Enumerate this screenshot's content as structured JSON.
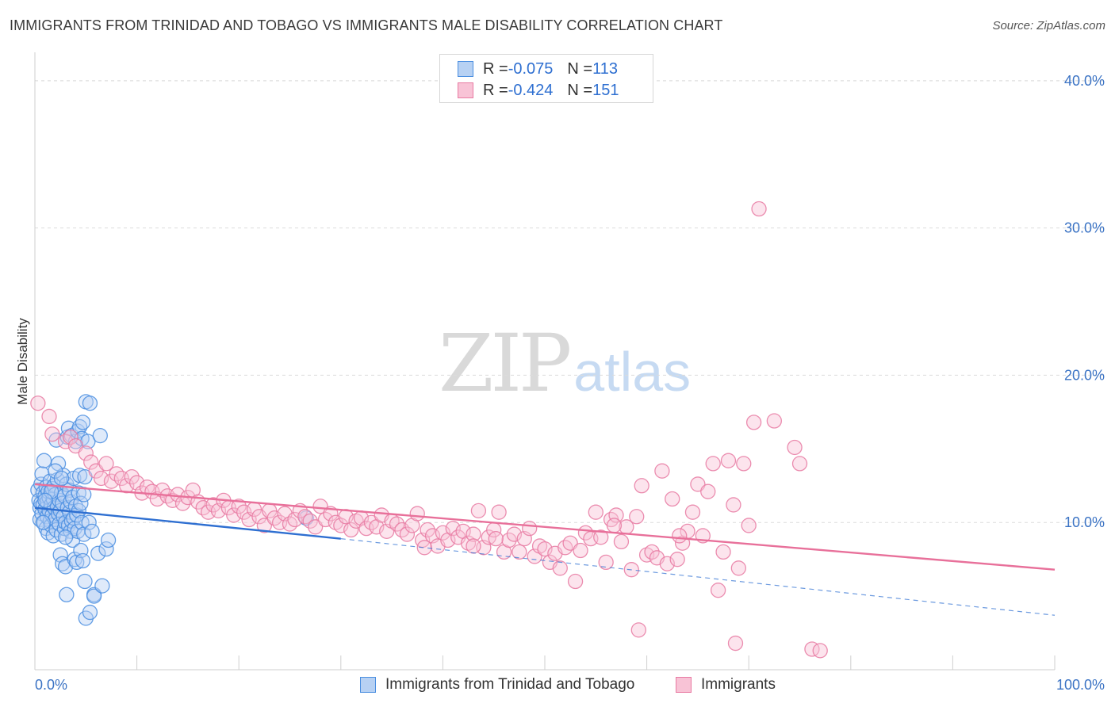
{
  "title": "IMMIGRANTS FROM TRINIDAD AND TOBAGO VS IMMIGRANTS MALE DISABILITY CORRELATION CHART",
  "source": "Source: ZipAtlas.com",
  "watermark": {
    "zip": "ZIP",
    "atlas": "atlas"
  },
  "colors": {
    "blue": "#4a8ee0",
    "blue_fill": "#b7d1f3",
    "pink": "#e87aa2",
    "pink_fill": "#f8c3d6",
    "blue_line": "#2e6fd1",
    "pink_line": "#e8709a",
    "tick": "#3b73c4"
  },
  "legend": [
    {
      "r_label": "R = ",
      "r_value": "-0.075",
      "n_label": "N = ",
      "n_value": "113"
    },
    {
      "r_label": "R = ",
      "r_value": "-0.424",
      "n_label": "N = ",
      "n_value": "151"
    }
  ],
  "chart_data": {
    "type": "scatter",
    "title": "IMMIGRANTS FROM TRINIDAD AND TOBAGO VS IMMIGRANTS MALE DISABILITY CORRELATION CHART",
    "xlabel": "",
    "ylabel": "Male Disability",
    "xlim": [
      0,
      100
    ],
    "ylim": [
      0,
      41.5
    ],
    "x_ticks": [
      {
        "value": 0,
        "label": "0.0%"
      },
      {
        "value": 100,
        "label": "100.0%"
      }
    ],
    "y_ticks": [
      {
        "value": 10,
        "label": "10.0%"
      },
      {
        "value": 20,
        "label": "20.0%"
      },
      {
        "value": 30,
        "label": "30.0%"
      },
      {
        "value": 40,
        "label": "40.0%"
      }
    ],
    "grid": "horizontal dashed",
    "series": [
      {
        "name": "Immigrants from Trinidad and Tobago",
        "color": "#4a8ee0",
        "trend": {
          "x0": 0,
          "y0": 11.0,
          "x1": 30,
          "y1": 8.9,
          "dashed_to_x": 100,
          "dashed_to_y": 3.7
        },
        "points": [
          [
            0.3,
            12.2
          ],
          [
            0.4,
            11.5
          ],
          [
            0.5,
            11.0
          ],
          [
            0.5,
            10.2
          ],
          [
            0.6,
            12.6
          ],
          [
            0.6,
            11.3
          ],
          [
            0.7,
            10.6
          ],
          [
            0.7,
            13.3
          ],
          [
            0.8,
            12.0
          ],
          [
            0.8,
            11.2
          ],
          [
            0.9,
            10.0
          ],
          [
            0.9,
            14.2
          ],
          [
            1.0,
            11.8
          ],
          [
            1.0,
            10.9
          ],
          [
            1.1,
            12.4
          ],
          [
            1.1,
            9.6
          ],
          [
            1.2,
            11.4
          ],
          [
            1.2,
            10.4
          ],
          [
            1.3,
            12.1
          ],
          [
            1.3,
            9.3
          ],
          [
            1.4,
            11.7
          ],
          [
            1.4,
            10.8
          ],
          [
            1.5,
            12.8
          ],
          [
            1.5,
            10.1
          ],
          [
            1.6,
            11.2
          ],
          [
            1.6,
            9.8
          ],
          [
            1.7,
            12.3
          ],
          [
            1.7,
            10.5
          ],
          [
            1.8,
            11.6
          ],
          [
            1.8,
            9.1
          ],
          [
            1.9,
            11.0
          ],
          [
            1.9,
            12.5
          ],
          [
            2.0,
            10.2
          ],
          [
            2.0,
            11.9
          ],
          [
            2.1,
            9.5
          ],
          [
            2.1,
            15.6
          ],
          [
            2.2,
            12.9
          ],
          [
            2.2,
            11.1
          ],
          [
            2.3,
            10.6
          ],
          [
            2.3,
            14.0
          ],
          [
            2.4,
            9.9
          ],
          [
            2.4,
            11.5
          ],
          [
            2.5,
            7.8
          ],
          [
            2.5,
            10.8
          ],
          [
            2.6,
            12.0
          ],
          [
            2.6,
            9.2
          ],
          [
            2.7,
            11.3
          ],
          [
            2.7,
            7.2
          ],
          [
            2.8,
            10.4
          ],
          [
            2.8,
            13.2
          ],
          [
            2.9,
            11.8
          ],
          [
            2.9,
            9.6
          ],
          [
            3.0,
            10.0
          ],
          [
            3.0,
            7.0
          ],
          [
            3.1,
            12.6
          ],
          [
            3.1,
            5.1
          ],
          [
            3.2,
            11.0
          ],
          [
            3.2,
            15.8
          ],
          [
            3.3,
            9.8
          ],
          [
            3.3,
            16.4
          ],
          [
            3.4,
            10.7
          ],
          [
            3.4,
            12.2
          ],
          [
            3.5,
            9.4
          ],
          [
            3.5,
            11.4
          ],
          [
            3.6,
            10.1
          ],
          [
            3.6,
            15.9
          ],
          [
            3.7,
            8.8
          ],
          [
            3.7,
            11.7
          ],
          [
            3.8,
            13.0
          ],
          [
            3.8,
            10.3
          ],
          [
            3.9,
            9.6
          ],
          [
            3.9,
            7.5
          ],
          [
            4.0,
            11.1
          ],
          [
            4.0,
            15.5
          ],
          [
            4.1,
            10.5
          ],
          [
            4.1,
            7.3
          ],
          [
            4.2,
            16.2
          ],
          [
            4.2,
            9.4
          ],
          [
            4.3,
            12.0
          ],
          [
            4.3,
            10.8
          ],
          [
            4.4,
            16.5
          ],
          [
            4.4,
            13.2
          ],
          [
            4.5,
            11.3
          ],
          [
            4.5,
            8.1
          ],
          [
            4.6,
            15.7
          ],
          [
            4.6,
            10.0
          ],
          [
            4.7,
            16.8
          ],
          [
            4.7,
            7.4
          ],
          [
            4.8,
            11.9
          ],
          [
            4.8,
            9.2
          ],
          [
            4.9,
            13.1
          ],
          [
            4.9,
            6.0
          ],
          [
            5.0,
            18.2
          ],
          [
            5.0,
            3.5
          ],
          [
            5.2,
            15.5
          ],
          [
            5.3,
            10.0
          ],
          [
            5.4,
            18.1
          ],
          [
            5.4,
            3.9
          ],
          [
            5.6,
            9.4
          ],
          [
            5.8,
            5.1
          ],
          [
            5.8,
            5.0
          ],
          [
            6.2,
            7.9
          ],
          [
            6.4,
            15.9
          ],
          [
            6.6,
            5.7
          ],
          [
            7.0,
            8.2
          ],
          [
            7.2,
            8.8
          ],
          [
            1.6,
            12.1
          ],
          [
            2.0,
            13.5
          ],
          [
            1.0,
            11.5
          ],
          [
            0.8,
            10.0
          ],
          [
            2.6,
            13.0
          ],
          [
            3.0,
            9.0
          ],
          [
            26.6,
            10.3
          ]
        ]
      },
      {
        "name": "Immigrants",
        "color": "#e87aa2",
        "trend": {
          "x0": 0,
          "y0": 12.6,
          "x1": 100,
          "y1": 6.8
        },
        "points": [
          [
            0.3,
            18.1
          ],
          [
            1.4,
            17.2
          ],
          [
            1.7,
            16.0
          ],
          [
            3.0,
            15.5
          ],
          [
            3.5,
            15.8
          ],
          [
            4.0,
            15.2
          ],
          [
            5.0,
            14.7
          ],
          [
            5.5,
            14.1
          ],
          [
            6.0,
            13.5
          ],
          [
            6.5,
            13.0
          ],
          [
            7.0,
            14.0
          ],
          [
            7.5,
            12.8
          ],
          [
            8.0,
            13.3
          ],
          [
            8.5,
            13.0
          ],
          [
            9.0,
            12.5
          ],
          [
            9.5,
            13.1
          ],
          [
            10.0,
            12.7
          ],
          [
            10.5,
            12.0
          ],
          [
            11.0,
            12.4
          ],
          [
            11.5,
            12.1
          ],
          [
            12.0,
            11.6
          ],
          [
            12.5,
            12.2
          ],
          [
            13.0,
            11.8
          ],
          [
            13.5,
            11.5
          ],
          [
            14.0,
            11.9
          ],
          [
            14.5,
            11.3
          ],
          [
            15.0,
            11.7
          ],
          [
            15.5,
            12.2
          ],
          [
            16.0,
            11.4
          ],
          [
            16.5,
            11.0
          ],
          [
            17.0,
            10.7
          ],
          [
            17.5,
            11.2
          ],
          [
            18.0,
            10.8
          ],
          [
            18.5,
            11.5
          ],
          [
            19.0,
            11.0
          ],
          [
            19.5,
            10.5
          ],
          [
            20.0,
            11.1
          ],
          [
            20.5,
            10.7
          ],
          [
            21.0,
            10.2
          ],
          [
            21.5,
            10.9
          ],
          [
            22.0,
            10.4
          ],
          [
            22.5,
            9.8
          ],
          [
            23.0,
            10.8
          ],
          [
            23.5,
            10.3
          ],
          [
            24.0,
            10.0
          ],
          [
            24.5,
            10.6
          ],
          [
            25.0,
            9.9
          ],
          [
            25.5,
            10.2
          ],
          [
            26.0,
            10.8
          ],
          [
            26.5,
            10.4
          ],
          [
            27.0,
            10.1
          ],
          [
            27.5,
            9.7
          ],
          [
            28.0,
            11.1
          ],
          [
            28.5,
            10.2
          ],
          [
            29.0,
            10.6
          ],
          [
            29.5,
            10.0
          ],
          [
            30.0,
            9.8
          ],
          [
            30.5,
            10.4
          ],
          [
            31.0,
            9.5
          ],
          [
            31.5,
            10.1
          ],
          [
            32.0,
            10.3
          ],
          [
            32.5,
            9.6
          ],
          [
            33.0,
            10.0
          ],
          [
            33.5,
            9.7
          ],
          [
            34.0,
            10.5
          ],
          [
            34.5,
            9.4
          ],
          [
            35.0,
            10.1
          ],
          [
            35.5,
            9.9
          ],
          [
            36.0,
            9.5
          ],
          [
            36.5,
            9.2
          ],
          [
            37.0,
            9.8
          ],
          [
            37.5,
            10.6
          ],
          [
            38.0,
            8.8
          ],
          [
            38.5,
            9.5
          ],
          [
            39.0,
            9.1
          ],
          [
            39.5,
            8.4
          ],
          [
            40.0,
            9.3
          ],
          [
            40.5,
            8.8
          ],
          [
            41.0,
            9.6
          ],
          [
            41.5,
            9.0
          ],
          [
            42.0,
            9.4
          ],
          [
            42.5,
            8.6
          ],
          [
            43.0,
            9.2
          ],
          [
            43.5,
            10.8
          ],
          [
            44.0,
            8.3
          ],
          [
            44.5,
            9.0
          ],
          [
            45.0,
            9.5
          ],
          [
            45.5,
            10.7
          ],
          [
            46.0,
            8.0
          ],
          [
            46.5,
            8.8
          ],
          [
            47.0,
            9.2
          ],
          [
            47.5,
            8.0
          ],
          [
            48.0,
            8.9
          ],
          [
            48.5,
            9.6
          ],
          [
            49.0,
            7.7
          ],
          [
            49.5,
            8.4
          ],
          [
            50.0,
            8.2
          ],
          [
            50.5,
            7.3
          ],
          [
            51.0,
            7.9
          ],
          [
            51.5,
            6.9
          ],
          [
            52.0,
            8.3
          ],
          [
            52.5,
            8.6
          ],
          [
            53.0,
            6.0
          ],
          [
            53.5,
            8.1
          ],
          [
            54.0,
            9.3
          ],
          [
            54.5,
            8.9
          ],
          [
            55.0,
            10.7
          ],
          [
            55.5,
            9.0
          ],
          [
            56.0,
            7.3
          ],
          [
            56.5,
            10.2
          ],
          [
            57.0,
            10.5
          ],
          [
            57.5,
            8.7
          ],
          [
            58.0,
            9.7
          ],
          [
            58.5,
            6.8
          ],
          [
            59.0,
            10.4
          ],
          [
            59.5,
            12.5
          ],
          [
            60.0,
            7.8
          ],
          [
            60.5,
            8.0
          ],
          [
            61.0,
            7.6
          ],
          [
            61.5,
            13.5
          ],
          [
            62.0,
            7.2
          ],
          [
            62.5,
            11.6
          ],
          [
            63.0,
            7.5
          ],
          [
            63.5,
            8.6
          ],
          [
            64.0,
            9.4
          ],
          [
            64.5,
            10.7
          ],
          [
            65.0,
            12.6
          ],
          [
            65.5,
            9.1
          ],
          [
            66.0,
            12.1
          ],
          [
            66.5,
            14.0
          ],
          [
            67.0,
            5.4
          ],
          [
            67.5,
            8.0
          ],
          [
            68.0,
            14.2
          ],
          [
            68.5,
            11.2
          ],
          [
            69.0,
            6.9
          ],
          [
            69.5,
            14.0
          ],
          [
            70.0,
            9.8
          ],
          [
            70.5,
            16.8
          ],
          [
            71.0,
            31.3
          ],
          [
            72.5,
            16.9
          ],
          [
            74.5,
            15.1
          ],
          [
            75.0,
            14.0
          ],
          [
            76.2,
            1.4
          ],
          [
            77.0,
            1.3
          ],
          [
            59.2,
            2.7
          ],
          [
            68.7,
            1.8
          ],
          [
            56.8,
            9.8
          ],
          [
            63.2,
            9.1
          ],
          [
            43.0,
            8.4
          ],
          [
            45.2,
            8.9
          ],
          [
            38.2,
            8.3
          ]
        ]
      }
    ]
  }
}
